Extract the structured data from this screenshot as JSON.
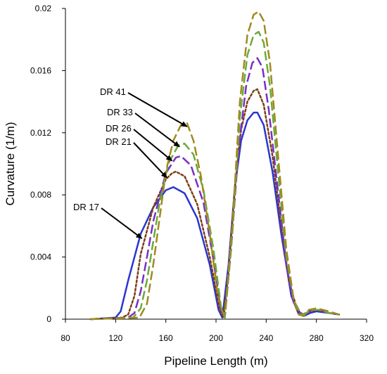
{
  "chart_data": {
    "type": "line",
    "title": "",
    "xlabel": "Pipeline Length (m)",
    "ylabel": "Curvature (1/m)",
    "xlim": [
      80,
      320
    ],
    "ylim": [
      0,
      0.02
    ],
    "xticks": [
      80,
      120,
      160,
      200,
      240,
      280,
      320
    ],
    "yticks": [
      0,
      0.004,
      0.008,
      0.012,
      0.016,
      0.02
    ],
    "xtick_labels": [
      "80",
      "120",
      "160",
      "200",
      "240",
      "280",
      "320"
    ],
    "ytick_labels": [
      "0",
      "0.004",
      "0.008",
      "0.012",
      "0.016",
      "0.02"
    ],
    "grid": false,
    "legend": "callout labels with arrows (left of first peak)",
    "series": [
      {
        "name": "DR 17",
        "color": "#2b35d1",
        "dash": "solid",
        "x": [
          100,
          120,
          124,
          130,
          140,
          150,
          160,
          166,
          175,
          185,
          195,
          202,
          205,
          210,
          215,
          220,
          225,
          230,
          233,
          238,
          245,
          252,
          260,
          266,
          270,
          275,
          280,
          290,
          298
        ],
        "y": [
          0,
          0.0001,
          0.0005,
          0.0025,
          0.0055,
          0.0072,
          0.0083,
          0.0085,
          0.0081,
          0.0065,
          0.0035,
          0.0006,
          0.0001,
          0.0035,
          0.0085,
          0.0115,
          0.0128,
          0.0133,
          0.0133,
          0.0125,
          0.0095,
          0.0055,
          0.0015,
          0.0003,
          0.0002,
          0.0004,
          0.0005,
          0.0004,
          0.0003
        ]
      },
      {
        "name": "DR 21",
        "color": "#7b3f14",
        "dash": "dot",
        "x": [
          100,
          125,
          130,
          135,
          140,
          150,
          160,
          165,
          168,
          175,
          185,
          195,
          203,
          206,
          210,
          215,
          220,
          225,
          230,
          233,
          238,
          245,
          252,
          258,
          265,
          270,
          275,
          280,
          290,
          298
        ],
        "y": [
          0,
          0.0001,
          0.0003,
          0.0015,
          0.0042,
          0.0072,
          0.009,
          0.0094,
          0.0095,
          0.0092,
          0.0074,
          0.004,
          0.0006,
          0.0001,
          0.003,
          0.0085,
          0.0122,
          0.014,
          0.0147,
          0.0148,
          0.0138,
          0.0105,
          0.006,
          0.0025,
          0.0005,
          0.0003,
          0.0005,
          0.0006,
          0.0004,
          0.0003
        ]
      },
      {
        "name": "DR 26",
        "color": "#7a2fc4",
        "dash": "longdash",
        "x": [
          100,
          130,
          135,
          140,
          145,
          150,
          160,
          168,
          172,
          180,
          190,
          198,
          204,
          207,
          212,
          218,
          224,
          229,
          233,
          237,
          242,
          250,
          256,
          262,
          268,
          272,
          276,
          282,
          290,
          298
        ],
        "y": [
          0,
          0.0001,
          0.0004,
          0.0018,
          0.004,
          0.0063,
          0.0094,
          0.0104,
          0.0105,
          0.0099,
          0.0075,
          0.0038,
          0.0006,
          0.0001,
          0.0045,
          0.011,
          0.015,
          0.0165,
          0.0168,
          0.0162,
          0.0135,
          0.0078,
          0.0035,
          0.001,
          0.0003,
          0.0004,
          0.0006,
          0.0006,
          0.0004,
          0.0003
        ]
      },
      {
        "name": "DR 33",
        "color": "#6aab3c",
        "dash": "longdash",
        "x": [
          100,
          134,
          140,
          145,
          150,
          155,
          162,
          170,
          175,
          182,
          190,
          198,
          204,
          207,
          213,
          219,
          225,
          230,
          234,
          238,
          243,
          250,
          256,
          262,
          268,
          272,
          276,
          282,
          290,
          298
        ],
        "y": [
          0,
          0.0001,
          0.0007,
          0.0025,
          0.005,
          0.0075,
          0.01,
          0.0112,
          0.0113,
          0.0106,
          0.0083,
          0.0045,
          0.0008,
          0.0001,
          0.0055,
          0.013,
          0.017,
          0.0183,
          0.0185,
          0.0178,
          0.015,
          0.009,
          0.004,
          0.0012,
          0.0003,
          0.0004,
          0.0006,
          0.0006,
          0.0004,
          0.0003
        ]
      },
      {
        "name": "DR 41",
        "color": "#a08a1e",
        "dash": "longdash",
        "x": [
          100,
          139,
          145,
          150,
          155,
          160,
          166,
          172,
          177,
          182,
          188,
          195,
          201,
          205,
          207,
          213,
          219,
          225,
          230,
          234,
          238,
          243,
          250,
          256,
          262,
          266,
          270,
          274,
          280,
          290,
          298
        ],
        "y": [
          0,
          0.0001,
          0.001,
          0.0035,
          0.0065,
          0.0095,
          0.0115,
          0.0125,
          0.0126,
          0.0115,
          0.0092,
          0.0055,
          0.0018,
          0.0005,
          0.0003,
          0.006,
          0.014,
          0.0183,
          0.0196,
          0.0198,
          0.0192,
          0.0165,
          0.01,
          0.0045,
          0.0012,
          0.0003,
          0.0002,
          0.0006,
          0.0007,
          0.0005,
          0.0003
        ]
      }
    ],
    "annotations": [
      {
        "text": "DR 41",
        "series": "DR 41",
        "point": [
          178,
          0.0124
        ]
      },
      {
        "text": "DR 33",
        "series": "DR 33",
        "point": [
          172,
          0.0111
        ]
      },
      {
        "text": "DR 26",
        "series": "DR 26",
        "point": [
          166,
          0.0102
        ]
      },
      {
        "text": "DR 21",
        "series": "DR 21",
        "point": [
          162,
          0.0091
        ]
      },
      {
        "text": "DR 17",
        "series": "DR 17",
        "point": [
          142,
          0.0052
        ]
      }
    ]
  }
}
